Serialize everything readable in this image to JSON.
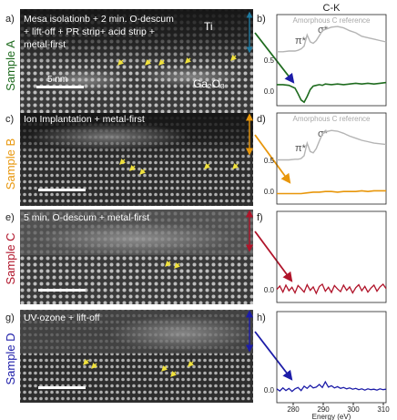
{
  "figure": {
    "column_title": "C-K",
    "x_axis_label": "Energy (eV)",
    "x_ticks": [
      "280",
      "290",
      "300",
      "310"
    ],
    "reference_label": "Amorphous C reference",
    "pi_label": "π*",
    "sigma_label": "σ*",
    "scale_bar_label": "5 nm",
    "ti_label": "Ti",
    "ga2o3_label": "Ga₂O₃",
    "colors": {
      "sample_a": "#1e6b1e",
      "sample_b": "#e8960a",
      "sample_c": "#b0142a",
      "sample_d": "#1c1ca8",
      "reference": "#b4b4b4",
      "interface_arrow": "#f0e13c"
    }
  },
  "rows": [
    {
      "sample": "Sample A",
      "image_panel_label": "a)",
      "spectrum_panel_label": "b)",
      "description_lines": [
        "Mesa isolationb + 2 min. O-descum",
        "+ lift-off + PR strip+ acid strip +",
        "metal-first"
      ],
      "y_ticks": [
        "0.5",
        "0.0"
      ],
      "has_reference": true
    },
    {
      "sample": "Sample B",
      "image_panel_label": "c)",
      "spectrum_panel_label": "d)",
      "description_lines": [
        "Ion Implantation + metal-first"
      ],
      "y_ticks": [
        "0.5",
        "0.0"
      ],
      "has_reference": true
    },
    {
      "sample": "Sample C",
      "image_panel_label": "e)",
      "spectrum_panel_label": "f)",
      "description_lines": [
        "5 min. O-descum + metal-first"
      ],
      "y_ticks": [
        "0.0"
      ],
      "has_reference": false
    },
    {
      "sample": "Sample D",
      "image_panel_label": "g)",
      "spectrum_panel_label": "h)",
      "description_lines": [
        "UV-ozone + lift-off"
      ],
      "y_ticks": [
        "0.0"
      ],
      "has_reference": false
    }
  ],
  "chart_data": [
    {
      "type": "line",
      "panel": "b)",
      "xlim": [
        274,
        310
      ],
      "ylim": [
        -0.05,
        1.25
      ],
      "series": [
        {
          "x": [
            274,
            276,
            278,
            280,
            281,
            282,
            283,
            284,
            285,
            286,
            287,
            288,
            289,
            290,
            292,
            294,
            296,
            298,
            300,
            302,
            304,
            306,
            308,
            310
          ],
          "y": [
            0.72,
            0.72,
            0.73,
            0.73,
            0.74,
            0.76,
            0.8,
            0.96,
            0.86,
            0.84,
            0.88,
            0.95,
            1.02,
            1.04,
            1.07,
            1.08,
            1.06,
            1.02,
            0.99,
            0.94,
            0.92,
            0.9,
            0.88,
            0.86
          ]
        },
        {
          "x": [
            274,
            276,
            278,
            280,
            281,
            282,
            283,
            284,
            285,
            286,
            287,
            288,
            289,
            290,
            292,
            294,
            296,
            298,
            300,
            302,
            304,
            306,
            308,
            310
          ],
          "y": [
            0.25,
            0.25,
            0.24,
            0.2,
            0.12,
            0.03,
            0.0,
            0.08,
            0.18,
            0.23,
            0.24,
            0.25,
            0.24,
            0.26,
            0.25,
            0.26,
            0.25,
            0.26,
            0.27,
            0.26,
            0.27,
            0.26,
            0.27,
            0.28
          ]
        }
      ]
    },
    {
      "type": "line",
      "panel": "d)",
      "xlim": [
        274,
        310
      ],
      "ylim": [
        -0.05,
        1.25
      ],
      "series": [
        {
          "x": [
            274,
            276,
            278,
            280,
            281,
            282,
            283,
            284,
            285,
            286,
            287,
            288,
            289,
            290,
            292,
            294,
            296,
            298,
            300,
            302,
            304,
            306,
            308,
            310
          ],
          "y": [
            0.58,
            0.58,
            0.58,
            0.59,
            0.59,
            0.6,
            0.64,
            0.82,
            0.7,
            0.68,
            0.74,
            0.85,
            0.95,
            0.98,
            1.0,
            0.99,
            0.96,
            0.92,
            0.89,
            0.86,
            0.84,
            0.82,
            0.81,
            0.8
          ]
        },
        {
          "x": [
            274,
            276,
            278,
            280,
            282,
            284,
            286,
            288,
            290,
            292,
            294,
            296,
            298,
            300,
            302,
            304,
            306,
            308,
            310
          ],
          "y": [
            0.1,
            0.1,
            0.1,
            0.1,
            0.1,
            0.11,
            0.12,
            0.12,
            0.13,
            0.13,
            0.12,
            0.13,
            0.13,
            0.13,
            0.14,
            0.13,
            0.14,
            0.14,
            0.14
          ]
        }
      ]
    },
    {
      "type": "line",
      "panel": "f)",
      "xlim": [
        274,
        310
      ],
      "ylim": [
        -0.3,
        1.8
      ],
      "series": [
        {
          "x": [
            274,
            275,
            276,
            277,
            278,
            279,
            280,
            281,
            282,
            283,
            284,
            285,
            286,
            287,
            288,
            289,
            290,
            291,
            292,
            293,
            294,
            295,
            296,
            297,
            298,
            299,
            300,
            301,
            302,
            303,
            304,
            305,
            306,
            307,
            308,
            309,
            310
          ],
          "y": [
            0.0,
            0.08,
            -0.06,
            0.1,
            -0.03,
            0.05,
            -0.08,
            0.09,
            0.02,
            -0.06,
            0.11,
            -0.02,
            0.06,
            -0.09,
            0.07,
            0.12,
            -0.04,
            0.05,
            -0.07,
            0.09,
            0.01,
            -0.05,
            0.1,
            -0.02,
            0.06,
            -0.08,
            0.04,
            0.11,
            -0.03,
            0.07,
            -0.06,
            0.03,
            0.1,
            -0.04,
            0.06,
            0.12,
            0.02
          ]
        }
      ]
    },
    {
      "type": "line",
      "panel": "h)",
      "xlim": [
        274,
        310
      ],
      "ylim": [
        -0.3,
        1.8
      ],
      "series": [
        {
          "x": [
            274,
            275,
            276,
            277,
            278,
            279,
            280,
            281,
            282,
            283,
            284,
            285,
            286,
            287,
            288,
            289,
            290,
            291,
            292,
            293,
            294,
            295,
            296,
            297,
            298,
            299,
            300,
            301,
            302,
            303,
            304,
            305,
            306,
            307,
            308,
            309,
            310
          ],
          "y": [
            0.02,
            -0.03,
            0.04,
            -0.02,
            0.03,
            -0.04,
            0.02,
            0.05,
            -0.02,
            0.08,
            0.03,
            0.1,
            0.04,
            0.06,
            0.12,
            0.05,
            0.18,
            0.06,
            0.09,
            0.04,
            0.07,
            0.03,
            0.05,
            0.02,
            0.04,
            0.01,
            0.03,
            0.0,
            0.02,
            -0.01,
            0.02,
            0.0,
            0.01,
            -0.01,
            0.02,
            0.0,
            0.01
          ]
        }
      ]
    }
  ]
}
